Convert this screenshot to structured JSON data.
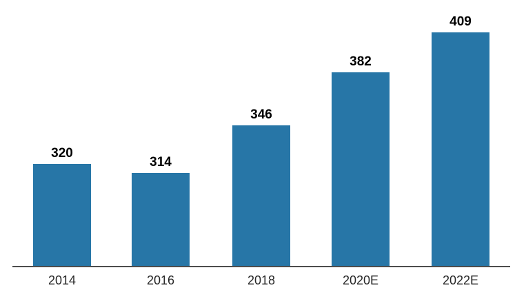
{
  "chart_data": {
    "type": "bar",
    "categories": [
      "2014",
      "2016",
      "2018",
      "2020E",
      "2022E"
    ],
    "values": [
      320,
      314,
      346,
      382,
      409
    ],
    "title": "",
    "xlabel": "",
    "ylabel": "",
    "ylim": [
      250,
      430
    ],
    "grid": false,
    "legend": false,
    "value_labels_shown": true,
    "colors": {
      "bar": "#2776a7",
      "axis_line": "#4d4d4d",
      "value_label": "#000000",
      "tick_label": "#262626",
      "background": "#ffffff"
    }
  }
}
